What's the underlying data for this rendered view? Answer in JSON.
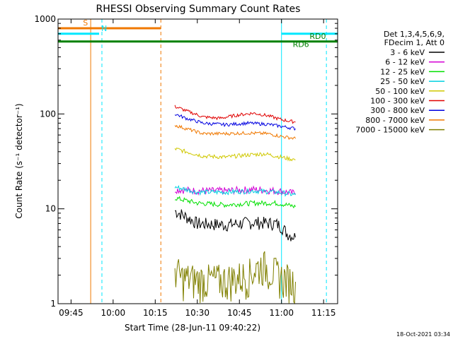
{
  "chart_data": {
    "type": "line",
    "title": "RHESSI Observing Summary Count Rates",
    "xlabel": "Start Time (28-Jun-11 09:40:22)",
    "ylabel": "Count Rate (s⁻¹ detector⁻¹)",
    "y_scale": "log",
    "ylim": [
      1,
      1000
    ],
    "xlim": [
      "09:40:22",
      "11:20:00"
    ],
    "x_ticks": [
      "09:45",
      "10:00",
      "10:15",
      "10:30",
      "10:45",
      "11:00",
      "11:15"
    ],
    "y_ticks": [
      "1",
      "10",
      "100",
      "1000"
    ],
    "grid": false,
    "legend_position": "right",
    "legend_header": [
      "Det 1,3,4,5,6,9,",
      "FDecim 1, Att 0"
    ],
    "series": [
      {
        "name": "3 - 6 keV",
        "color": "#000000",
        "x": [
          "10:22",
          "10:30",
          "10:40",
          "10:50",
          "10:58",
          "11:00",
          "11:02",
          "11:04",
          "11:05"
        ],
        "values": [
          9.5,
          7.0,
          6.8,
          7.2,
          7.0,
          6.5,
          5.5,
          5.2,
          5.0
        ]
      },
      {
        "name": "6 - 12 keV",
        "color": "#d400d4",
        "x": [
          "10:22",
          "10:30",
          "10:40",
          "10:50",
          "10:58",
          "11:02",
          "11:05"
        ],
        "values": [
          16,
          15.5,
          15.5,
          16,
          15.5,
          15,
          14.5
        ]
      },
      {
        "name": "12 - 25 keV",
        "color": "#00e000",
        "x": [
          "10:22",
          "10:30",
          "10:40",
          "10:50",
          "10:58",
          "11:02",
          "11:05"
        ],
        "values": [
          13,
          11.5,
          11,
          11.5,
          11.5,
          11,
          10.5
        ]
      },
      {
        "name": "25 - 50 keV",
        "color": "#00d0e0",
        "x": [
          "10:22",
          "10:30",
          "10:40",
          "10:50",
          "10:58",
          "11:02",
          "11:05"
        ],
        "values": [
          17,
          15,
          15,
          15.5,
          15,
          14.5,
          14
        ]
      },
      {
        "name": "50 - 100 keV",
        "color": "#d0c800",
        "x": [
          "10:22",
          "10:26",
          "10:32",
          "10:40",
          "10:48",
          "10:54",
          "10:58",
          "11:02",
          "11:05"
        ],
        "values": [
          43,
          40,
          36,
          35,
          37,
          38,
          36,
          34,
          33
        ]
      },
      {
        "name": "100 - 300 keV",
        "color": "#e00000",
        "x": [
          "10:22",
          "10:26",
          "10:32",
          "10:38",
          "10:45",
          "10:50",
          "10:55",
          "11:00",
          "11:05"
        ],
        "values": [
          120,
          108,
          93,
          90,
          98,
          102,
          96,
          87,
          82
        ]
      },
      {
        "name": "300 - 800 keV",
        "color": "#0000e0",
        "x": [
          "10:22",
          "10:26",
          "10:32",
          "10:40",
          "10:48",
          "10:55",
          "11:00",
          "11:05"
        ],
        "values": [
          100,
          90,
          80,
          77,
          80,
          78,
          74,
          70
        ]
      },
      {
        "name": "800 - 7000 keV",
        "color": "#f07800",
        "x": [
          "10:22",
          "10:26",
          "10:32",
          "10:40",
          "10:48",
          "10:55",
          "11:00",
          "11:05"
        ],
        "values": [
          76,
          70,
          62,
          62,
          63,
          62,
          58,
          55
        ]
      },
      {
        "name": "7000 - 15000 keV",
        "color": "#808000",
        "x": [
          "10:22",
          "10:24",
          "10:30",
          "10:40",
          "10:48",
          "10:53",
          "11:00",
          "11:05"
        ],
        "values": [
          2.4,
          1.9,
          1.8,
          1.8,
          2.0,
          2.6,
          1.9,
          1.7
        ]
      }
    ],
    "flags": [
      {
        "label": "S",
        "color": "#f07800",
        "y": 800,
        "x_start": "09:40:22",
        "x_end": "10:17"
      },
      {
        "label": "N",
        "color": "#00e8ff",
        "y": 700,
        "x_start": "09:40:22",
        "x_end": "09:55"
      },
      {
        "label": "",
        "color": "#00e8ff",
        "y": 700,
        "x_start": "11:00",
        "x_end": "11:20"
      },
      {
        "label": "",
        "color": "#008000",
        "y": 580,
        "x_start": "09:40:22",
        "x_end": "11:20"
      }
    ],
    "flag_annotations": [
      {
        "label": "RD0",
        "color": "#008000",
        "x": "11:10",
        "y": 620
      },
      {
        "label": "RD6",
        "color": "#008000",
        "x": "11:04",
        "y": 510
      }
    ],
    "vertical_markers": [
      {
        "x": "09:52",
        "color": "#f07800",
        "style": "solid"
      },
      {
        "x": "09:56",
        "color": "#00e8ff",
        "style": "dashed"
      },
      {
        "x": "10:17",
        "color": "#f07800",
        "style": "dashed"
      },
      {
        "x": "11:00",
        "color": "#00e8ff",
        "style": "solid"
      },
      {
        "x": "11:16",
        "color": "#00e8ff",
        "style": "dashed"
      }
    ]
  },
  "timestamp": "18-Oct-2021 03:34"
}
